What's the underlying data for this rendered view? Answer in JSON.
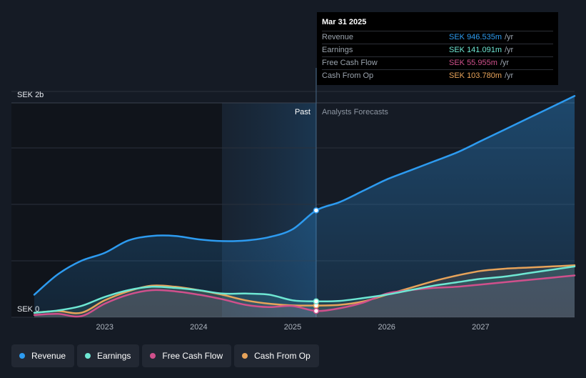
{
  "chart_data": {
    "type": "line",
    "y_axis": {
      "top_label": "SEK 2b",
      "bottom_label": "SEK 0",
      "ylim": [
        0,
        2000
      ]
    },
    "x_axis": {
      "ticks": [
        "2023",
        "2024",
        "2025",
        "2026",
        "2027"
      ],
      "xlim": [
        2022.25,
        2028.0
      ]
    },
    "sections": {
      "past_label": "Past",
      "forecast_label": "Analysts Forecasts",
      "split_x": 2025.25
    },
    "series": [
      {
        "name": "Revenue",
        "color": "#2d9bf0",
        "points": [
          [
            2022.25,
            200
          ],
          [
            2022.5,
            380
          ],
          [
            2022.75,
            500
          ],
          [
            2023.0,
            570
          ],
          [
            2023.25,
            680
          ],
          [
            2023.5,
            720
          ],
          [
            2023.75,
            720
          ],
          [
            2024.0,
            690
          ],
          [
            2024.25,
            675
          ],
          [
            2024.5,
            680
          ],
          [
            2024.75,
            710
          ],
          [
            2025.0,
            780
          ],
          [
            2025.25,
            946.535
          ],
          [
            2025.5,
            1020
          ],
          [
            2025.75,
            1120
          ],
          [
            2026.0,
            1220
          ],
          [
            2026.25,
            1300
          ],
          [
            2026.5,
            1380
          ],
          [
            2026.75,
            1460
          ],
          [
            2027.0,
            1560
          ],
          [
            2027.25,
            1660
          ],
          [
            2027.5,
            1760
          ],
          [
            2027.75,
            1860
          ],
          [
            2028.0,
            1960
          ]
        ]
      },
      {
        "name": "Earnings",
        "color": "#6ee7d3",
        "points": [
          [
            2022.25,
            40
          ],
          [
            2022.5,
            60
          ],
          [
            2022.75,
            100
          ],
          [
            2023.0,
            180
          ],
          [
            2023.25,
            240
          ],
          [
            2023.5,
            270
          ],
          [
            2023.75,
            260
          ],
          [
            2024.0,
            240
          ],
          [
            2024.25,
            210
          ],
          [
            2024.5,
            210
          ],
          [
            2024.75,
            200
          ],
          [
            2025.0,
            150
          ],
          [
            2025.25,
            141.091
          ],
          [
            2025.5,
            145
          ],
          [
            2025.75,
            170
          ],
          [
            2026.0,
            200
          ],
          [
            2026.25,
            240
          ],
          [
            2026.5,
            280
          ],
          [
            2026.75,
            310
          ],
          [
            2027.0,
            340
          ],
          [
            2027.25,
            360
          ],
          [
            2027.5,
            390
          ],
          [
            2027.75,
            420
          ],
          [
            2028.0,
            450
          ]
        ]
      },
      {
        "name": "Free Cash Flow",
        "color": "#d0508c",
        "points": [
          [
            2022.25,
            20
          ],
          [
            2022.5,
            30
          ],
          [
            2022.75,
            10
          ],
          [
            2023.0,
            120
          ],
          [
            2023.25,
            200
          ],
          [
            2023.5,
            240
          ],
          [
            2023.75,
            230
          ],
          [
            2024.0,
            200
          ],
          [
            2024.25,
            160
          ],
          [
            2024.5,
            110
          ],
          [
            2024.75,
            90
          ],
          [
            2025.0,
            100
          ],
          [
            2025.25,
            55.955
          ],
          [
            2025.5,
            80
          ],
          [
            2025.75,
            130
          ],
          [
            2026.0,
            210
          ],
          [
            2026.25,
            240
          ],
          [
            2026.5,
            260
          ],
          [
            2026.75,
            270
          ],
          [
            2027.0,
            290
          ],
          [
            2027.25,
            310
          ],
          [
            2027.5,
            330
          ],
          [
            2027.75,
            350
          ],
          [
            2028.0,
            370
          ]
        ]
      },
      {
        "name": "Cash From Op",
        "color": "#e7a35a",
        "points": [
          [
            2022.25,
            40
          ],
          [
            2022.5,
            55
          ],
          [
            2022.75,
            40
          ],
          [
            2023.0,
            150
          ],
          [
            2023.25,
            230
          ],
          [
            2023.5,
            280
          ],
          [
            2023.75,
            270
          ],
          [
            2024.0,
            240
          ],
          [
            2024.25,
            200
          ],
          [
            2024.5,
            150
          ],
          [
            2024.75,
            120
          ],
          [
            2025.0,
            105
          ],
          [
            2025.25,
            103.78
          ],
          [
            2025.5,
            110
          ],
          [
            2025.75,
            140
          ],
          [
            2026.0,
            200
          ],
          [
            2026.25,
            260
          ],
          [
            2026.5,
            320
          ],
          [
            2026.75,
            370
          ],
          [
            2027.0,
            410
          ],
          [
            2027.25,
            430
          ],
          [
            2027.5,
            440
          ],
          [
            2027.75,
            450
          ],
          [
            2028.0,
            460
          ]
        ]
      }
    ]
  },
  "tooltip": {
    "date": "Mar 31 2025",
    "rows": [
      {
        "label": "Revenue",
        "value": "SEK 946.535m",
        "unit": "/yr",
        "color": "#2d9bf0"
      },
      {
        "label": "Earnings",
        "value": "SEK 141.091m",
        "unit": "/yr",
        "color": "#6ee7d3"
      },
      {
        "label": "Free Cash Flow",
        "value": "SEK 55.955m",
        "unit": "/yr",
        "color": "#d0508c"
      },
      {
        "label": "Cash From Op",
        "value": "SEK 103.780m",
        "unit": "/yr",
        "color": "#e7a35a"
      }
    ]
  },
  "legend": [
    {
      "label": "Revenue",
      "color": "#2d9bf0"
    },
    {
      "label": "Earnings",
      "color": "#6ee7d3"
    },
    {
      "label": "Free Cash Flow",
      "color": "#d0508c"
    },
    {
      "label": "Cash From Op",
      "color": "#e7a35a"
    }
  ]
}
